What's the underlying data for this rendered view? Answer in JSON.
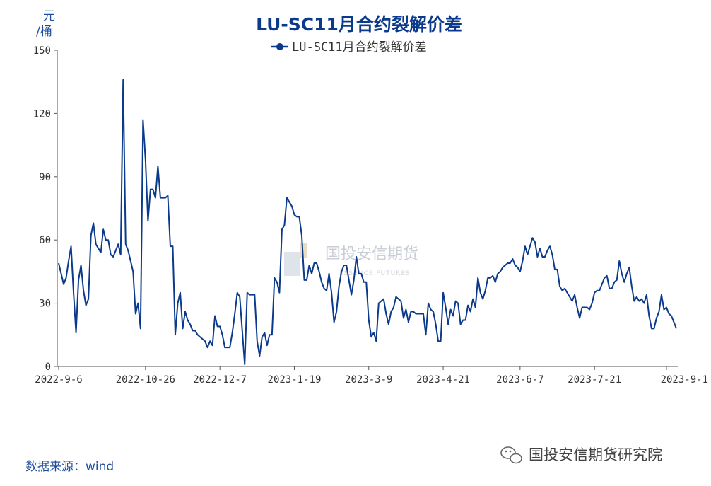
{
  "chart_data": {
    "type": "line",
    "title": "LU-SC11月合约裂解价差",
    "ylabel_top": "元",
    "ylabel_bottom": "/桶",
    "ylim": [
      0,
      150
    ],
    "yticks": [
      0,
      30,
      60,
      90,
      120,
      150
    ],
    "xtick_labels": [
      "2022-9-6",
      "2022-10-26",
      "2022-12-7",
      "2023-1-19",
      "2023-3-9",
      "2023-4-21",
      "2023-6-7",
      "2023-7-21",
      "2023-9-1"
    ],
    "legend": "top-center",
    "grid": false,
    "series": [
      {
        "name": "LU-SC11月合约裂解价差",
        "color": "#0b3a8c",
        "values": [
          49,
          44,
          39,
          42,
          50,
          57,
          35,
          16,
          41,
          48,
          36,
          29,
          32,
          62,
          68,
          58,
          56,
          54,
          65,
          60,
          60,
          53,
          52,
          55,
          58,
          53,
          136,
          58,
          55,
          50,
          45,
          25,
          30,
          18,
          117,
          98,
          69,
          84,
          84,
          80,
          95,
          80,
          80,
          80,
          81,
          57,
          57,
          15,
          30,
          35,
          18,
          26,
          22,
          20,
          17,
          17,
          15,
          14,
          13,
          12,
          9,
          12,
          10,
          24,
          19,
          19,
          15,
          9,
          9,
          9,
          16,
          25,
          35,
          33,
          17,
          1,
          35,
          34,
          34,
          34,
          12,
          5,
          14,
          16,
          10,
          15,
          15,
          42,
          40,
          35,
          65,
          67,
          80,
          78,
          76,
          72,
          71,
          71,
          62,
          41,
          41,
          48,
          44,
          49,
          49,
          45,
          40,
          37,
          36,
          44,
          35,
          21,
          26,
          38,
          45,
          48,
          48,
          41,
          34,
          41,
          52,
          44,
          44,
          40,
          40,
          22,
          14,
          16,
          12,
          30,
          31,
          32,
          25,
          20,
          26,
          28,
          33,
          32,
          31,
          23,
          27,
          21,
          26,
          26,
          25,
          25,
          25,
          25,
          15,
          30,
          27,
          26,
          20,
          12,
          12,
          35,
          28,
          20,
          27,
          24,
          31,
          30,
          20,
          22,
          22,
          29,
          26,
          32,
          28,
          42,
          35,
          32,
          36,
          42,
          42,
          43,
          40,
          44,
          45,
          47,
          48,
          49,
          49,
          51,
          48,
          47,
          45,
          50,
          57,
          53,
          57,
          61,
          59,
          52,
          56,
          52,
          52,
          55,
          57,
          53,
          46,
          46,
          38,
          36,
          37,
          35,
          33,
          31,
          34,
          28,
          23,
          28,
          28,
          28,
          27,
          30,
          35,
          36,
          36,
          39,
          42,
          43,
          37,
          37,
          40,
          41,
          50,
          44,
          40,
          44,
          47,
          38,
          31,
          33,
          31,
          32,
          30,
          34,
          24,
          18,
          18,
          23,
          26,
          34,
          27,
          28,
          25,
          24,
          21,
          18
        ],
        "x_tick_indices": [
          0,
          35,
          65,
          95,
          125,
          155,
          186,
          216,
          245
        ]
      }
    ]
  },
  "watermark": {
    "name": "国投安信期货",
    "sub": "ESSENCE FUTURES"
  },
  "footer": {
    "source": "数据来源：wind",
    "brand": "国投安信期货研究院"
  }
}
